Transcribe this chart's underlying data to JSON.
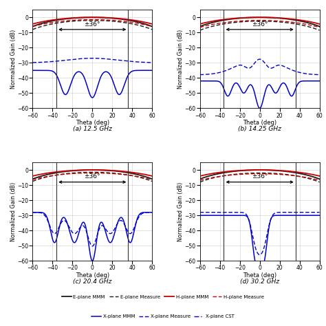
{
  "titles": [
    "(a) 12.5 GHz",
    "(b) 14.25 GHz",
    "(c) 20.4 GHz",
    "(d) 30.2 GHz"
  ],
  "theta_range": [
    -60,
    60
  ],
  "ylim": [
    -60,
    5
  ],
  "yticks": [
    0,
    -10,
    -20,
    -30,
    -40,
    -50,
    -60
  ],
  "xticks": [
    -60,
    -40,
    -20,
    0,
    20,
    40,
    60
  ],
  "vline_pos": [
    -36,
    36
  ],
  "annotation_text": "±36°",
  "xlabel": "Theta (deg)",
  "ylabel": "Normalized Gain (dB)",
  "colors": {
    "e_plane": "#1a1a1a",
    "h_plane": "#cc0000",
    "x_plane": "#0000cc"
  },
  "legend_row1": [
    "E-plane MMM",
    "E-plane Measure",
    "H-plane MMM",
    "H-plane Measure"
  ],
  "legend_row2": [
    "X-plane MMM",
    "X-plane Measure",
    "X-plane CST"
  ]
}
